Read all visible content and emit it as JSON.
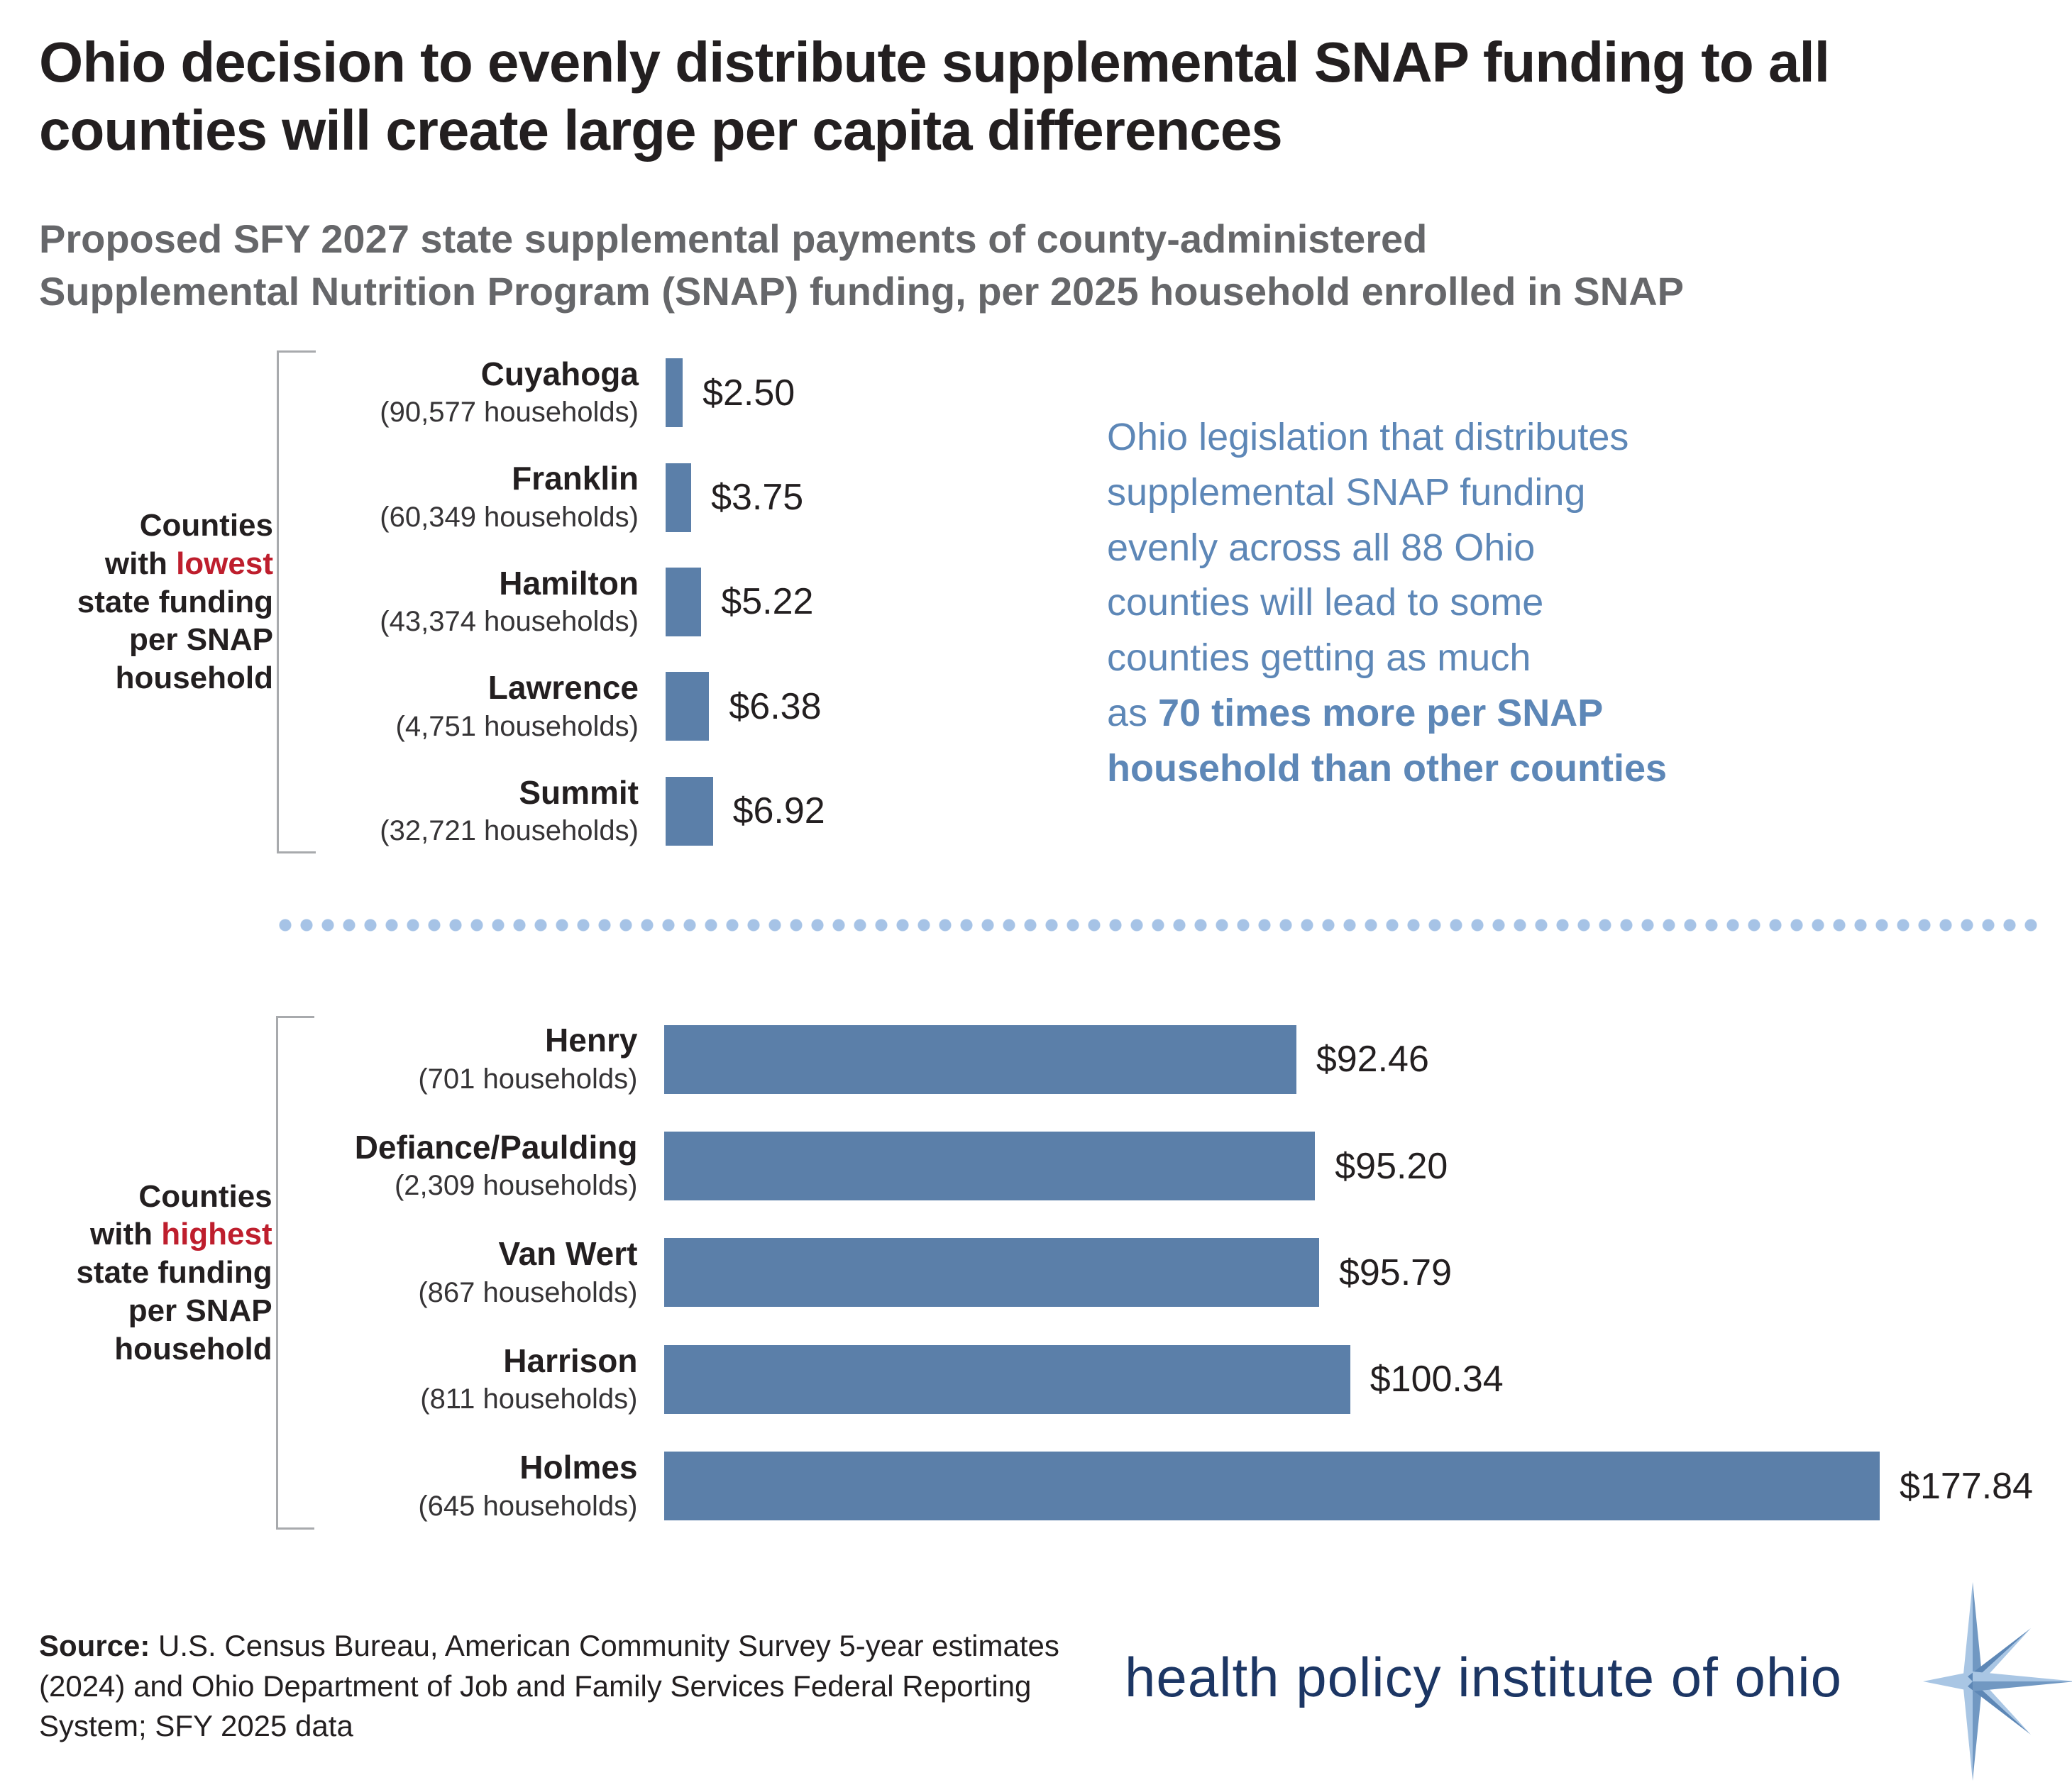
{
  "title": {
    "line1": "Ohio decision to evenly distribute supplemental SNAP funding to all",
    "line2": "counties will create large per capita differences"
  },
  "subtitle": {
    "line1": "Proposed SFY 2027 state supplemental payments of county-administered",
    "line2": "Supplemental Nutrition Program (SNAP) funding, per 2025 household enrolled in SNAP"
  },
  "annotation": {
    "lines": [
      {
        "n": "Ohio legislation that distributes"
      },
      {
        "n": "supplemental SNAP funding"
      },
      {
        "n": "evenly across all 88 Ohio"
      },
      {
        "n": "counties will lead to some"
      },
      {
        "n": "counties getting as much"
      },
      {
        "n": "as ",
        "b": "70 times more per SNAP"
      },
      {
        "b": "household than other counties"
      }
    ]
  },
  "groups": [
    {
      "label": {
        "line1": "Counties",
        "line2_pre": "with ",
        "line2_accent": "lowest",
        "line3": "state funding",
        "line4": "per SNAP",
        "line5": "household"
      },
      "rows": [
        {
          "county": "Cuyahoga",
          "households": "(90,577 households)",
          "value": 2.5,
          "value_label": "$2.50"
        },
        {
          "county": "Franklin",
          "households": "(60,349 households)",
          "value": 3.75,
          "value_label": "$3.75"
        },
        {
          "county": "Hamilton",
          "households": "(43,374 households)",
          "value": 5.22,
          "value_label": "$5.22"
        },
        {
          "county": "Lawrence",
          "households": "(4,751 households)",
          "value": 6.38,
          "value_label": "$6.38"
        },
        {
          "county": "Summit",
          "households": "(32,721 households)",
          "value": 6.92,
          "value_label": "$6.92"
        }
      ]
    },
    {
      "label": {
        "line1": "Counties",
        "line2_pre": "with ",
        "line2_accent": "highest",
        "line3": "state funding",
        "line4": "per SNAP",
        "line5": "household"
      },
      "rows": [
        {
          "county": "Henry",
          "households": "(701 households)",
          "value": 92.46,
          "value_label": "$92.46"
        },
        {
          "county": "Defiance/Paulding",
          "households": "(2,309 households)",
          "value": 95.2,
          "value_label": "$95.20"
        },
        {
          "county": "Van Wert",
          "households": "(867 households)",
          "value": 95.79,
          "value_label": "$95.79"
        },
        {
          "county": "Harrison",
          "households": "(811 households)",
          "value": 100.34,
          "value_label": "$100.34"
        },
        {
          "county": "Holmes",
          "households": "(645 households)",
          "value": 177.84,
          "value_label": "$177.84"
        }
      ]
    }
  ],
  "source": {
    "label": "Source:",
    "text": " U.S. Census Bureau, American Community Survey 5-year estimates (2024) and Ohio Department of Job and Family Services Federal Reporting System; SFY 2025 data"
  },
  "logo": {
    "text": "health policy institute of ohio"
  },
  "colors": {
    "bar_blue": "#5b7fa9",
    "accent_red": "#be1e2d",
    "annotation_blue": "#5d87b7",
    "divider_dot": "#a6c3e6",
    "title_black": "#231f20",
    "subtitle_gray": "#66676a",
    "bracket_gray": "#a8aaad",
    "logo_navy": "#1c3664",
    "star_light": "#a9c6e4",
    "star_mid": "#7198c2",
    "star_dark": "#5d87b6"
  },
  "chart_data": [
    {
      "type": "bar",
      "orientation": "horizontal",
      "title": "Counties with lowest state funding per SNAP household",
      "categories": [
        "Cuyahoga",
        "Franklin",
        "Hamilton",
        "Lawrence",
        "Summit"
      ],
      "category_sublabels": [
        "(90,577 households)",
        "(60,349 households)",
        "(43,374 households)",
        "(4,751 households)",
        "(32,721 households)"
      ],
      "values": [
        2.5,
        3.75,
        5.22,
        6.38,
        6.92
      ],
      "value_labels": [
        "$2.50",
        "$3.75",
        "$5.22",
        "$6.38",
        "$6.92"
      ],
      "unit": "USD per 2025 SNAP household",
      "xlim": [
        0,
        185
      ],
      "grid": false,
      "legend": false
    },
    {
      "type": "bar",
      "orientation": "horizontal",
      "title": "Counties with highest state funding per SNAP household",
      "categories": [
        "Henry",
        "Defiance/Paulding",
        "Van Wert",
        "Harrison",
        "Holmes"
      ],
      "category_sublabels": [
        "(701 households)",
        "(2,309 households)",
        "(867 households)",
        "(811 households)",
        "(645 households)"
      ],
      "values": [
        92.46,
        95.2,
        95.79,
        100.34,
        177.84
      ],
      "value_labels": [
        "$92.46",
        "$95.20",
        "$95.79",
        "$100.34",
        "$177.84"
      ],
      "unit": "USD per 2025 SNAP household",
      "xlim": [
        0,
        185
      ],
      "grid": false,
      "legend": false
    }
  ]
}
